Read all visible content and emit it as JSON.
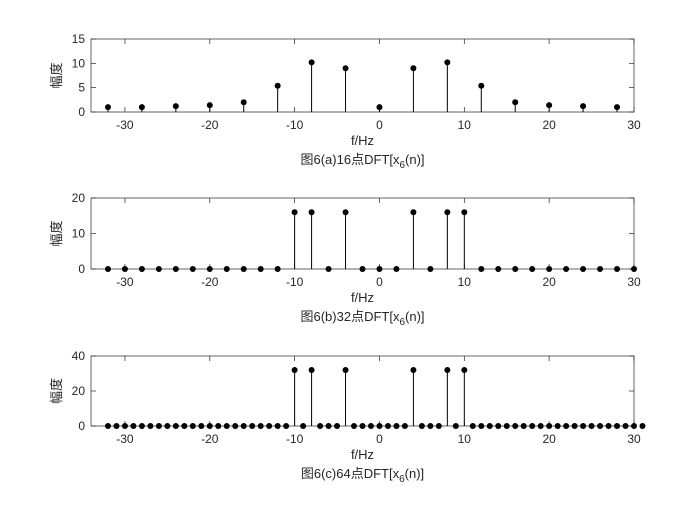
{
  "chart_data": [
    {
      "type": "stem",
      "title": "",
      "caption": "图6(a)16点DFT[x",
      "caption_sub": "6",
      "caption_tail": "(n)]",
      "xlabel": "f/Hz",
      "ylabel": "幅度",
      "xlim": [
        -34,
        30
      ],
      "ylim": [
        0,
        15
      ],
      "xticks": [
        -30,
        -20,
        -10,
        0,
        10,
        20,
        30
      ],
      "yticks": [
        0,
        5,
        10,
        15
      ],
      "grid": false,
      "color": "#000000",
      "x": [
        -32,
        -28,
        -24,
        -20,
        -16,
        -12,
        -8,
        -4,
        0,
        4,
        8,
        12,
        16,
        20,
        24,
        28
      ],
      "values": [
        1.0,
        1.0,
        1.2,
        1.4,
        2.0,
        5.4,
        10.2,
        9.0,
        1.0,
        9.0,
        10.2,
        5.4,
        2.0,
        1.4,
        1.2,
        1.0
      ]
    },
    {
      "type": "stem",
      "title": "",
      "caption": "图6(b)32点DFT[x",
      "caption_sub": "6",
      "caption_tail": "(n)]",
      "xlabel": "f/Hz",
      "ylabel": "幅度",
      "xlim": [
        -34,
        30
      ],
      "ylim": [
        0,
        20
      ],
      "xticks": [
        -30,
        -20,
        -10,
        0,
        10,
        20,
        30
      ],
      "yticks": [
        0,
        10,
        20
      ],
      "grid": false,
      "color": "#000000",
      "x": [
        -32,
        -30,
        -28,
        -26,
        -24,
        -22,
        -20,
        -18,
        -16,
        -14,
        -12,
        -10,
        -8,
        -6,
        -4,
        -2,
        0,
        2,
        4,
        6,
        8,
        10,
        12,
        14,
        16,
        18,
        20,
        22,
        24,
        26,
        28,
        30
      ],
      "values": [
        0,
        0,
        0,
        0,
        0,
        0,
        0,
        0,
        0,
        0,
        0,
        16,
        16,
        0,
        16,
        0,
        0,
        0,
        16,
        0,
        16,
        16,
        0,
        0,
        0,
        0,
        0,
        0,
        0,
        0,
        0,
        0
      ]
    },
    {
      "type": "stem",
      "title": "",
      "caption": "图6(c)64点DFT[x",
      "caption_sub": "6",
      "caption_tail": "(n)]",
      "xlabel": "f/Hz",
      "ylabel": "幅度",
      "xlim": [
        -34,
        30
      ],
      "ylim": [
        0,
        40
      ],
      "xticks": [
        -30,
        -20,
        -10,
        0,
        10,
        20,
        30
      ],
      "yticks": [
        0,
        20,
        40
      ],
      "grid": false,
      "color": "#000000",
      "x": [
        -32,
        -31,
        -30,
        -29,
        -28,
        -27,
        -26,
        -25,
        -24,
        -23,
        -22,
        -21,
        -20,
        -19,
        -18,
        -17,
        -16,
        -15,
        -14,
        -13,
        -12,
        -11,
        -10,
        -9,
        -8,
        -7,
        -6,
        -5,
        -4,
        -3,
        -2,
        -1,
        0,
        1,
        2,
        3,
        4,
        5,
        6,
        7,
        8,
        9,
        10,
        11,
        12,
        13,
        14,
        15,
        16,
        17,
        18,
        19,
        20,
        21,
        22,
        23,
        24,
        25,
        26,
        27,
        28,
        29,
        30,
        31
      ],
      "values": [
        0,
        0,
        0,
        0,
        0,
        0,
        0,
        0,
        0,
        0,
        0,
        0,
        0,
        0,
        0,
        0,
        0,
        0,
        0,
        0,
        0,
        0,
        32,
        0,
        32,
        0,
        0,
        0,
        32,
        0,
        0,
        0,
        0,
        0,
        0,
        0,
        32,
        0,
        0,
        0,
        32,
        0,
        32,
        0,
        0,
        0,
        0,
        0,
        0,
        0,
        0,
        0,
        0,
        0,
        0,
        0,
        0,
        0,
        0,
        0,
        0,
        0,
        0,
        0
      ]
    }
  ]
}
